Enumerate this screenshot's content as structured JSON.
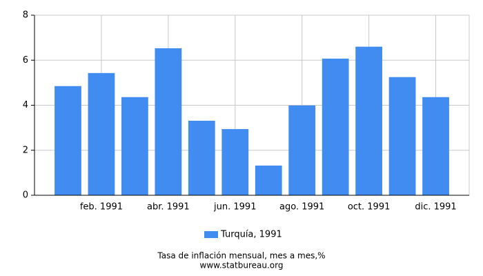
{
  "chart_data": {
    "type": "bar",
    "categories": [
      null,
      "feb. 1991",
      null,
      "abr. 1991",
      null,
      "jun. 1991",
      null,
      "ago. 1991",
      null,
      "oct. 1991",
      null,
      "dic. 1991"
    ],
    "series": [
      {
        "name": "Turquía, 1991",
        "color": "#418cf0",
        "values": [
          4.85,
          5.43,
          4.36,
          6.53,
          3.31,
          2.94,
          1.32,
          3.99,
          6.07,
          6.6,
          5.25,
          4.36
        ]
      }
    ],
    "ylim": [
      0,
      8
    ],
    "yticks": [
      0,
      2,
      4,
      6,
      8
    ],
    "grid": true,
    "footer": [
      "Tasa de inflación mensual, mes a mes,%",
      "www.statbureau.org"
    ]
  }
}
